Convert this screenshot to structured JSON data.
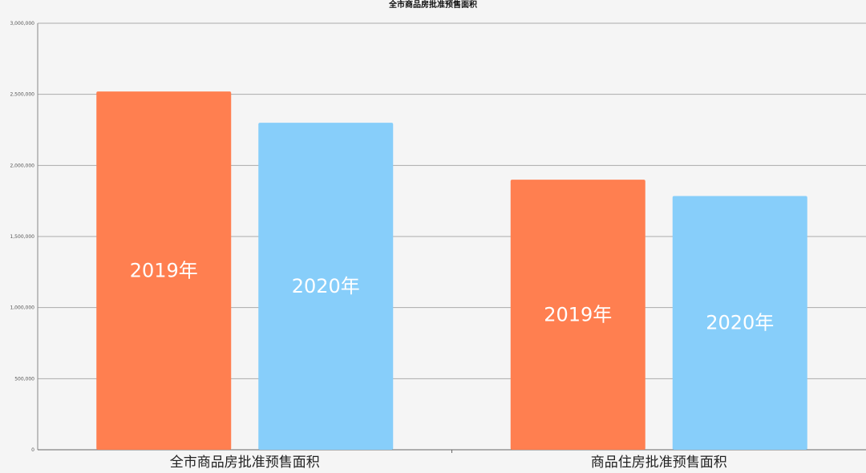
{
  "chart_data": {
    "type": "bar",
    "title": "全市商品房批准预售面积",
    "categories": [
      "全市商品房批准预售面积",
      "商品住房批准预售面积"
    ],
    "series": [
      {
        "name": "2019年",
        "color": "#FF7F50",
        "values": [
          2520000,
          1900000
        ]
      },
      {
        "name": "2020年",
        "color": "#87CEFA",
        "values": [
          2300000,
          1785000
        ]
      }
    ],
    "ylim": [
      0,
      3000000
    ],
    "yticks": [
      "0",
      "500,000",
      "1,000,000",
      "1,500,000",
      "2,000,000",
      "2,500,000",
      "3,000,000"
    ],
    "ytick_values": [
      0,
      500000,
      1000000,
      1500000,
      2000000,
      2500000,
      3000000
    ],
    "grid": true,
    "legend": "none"
  }
}
